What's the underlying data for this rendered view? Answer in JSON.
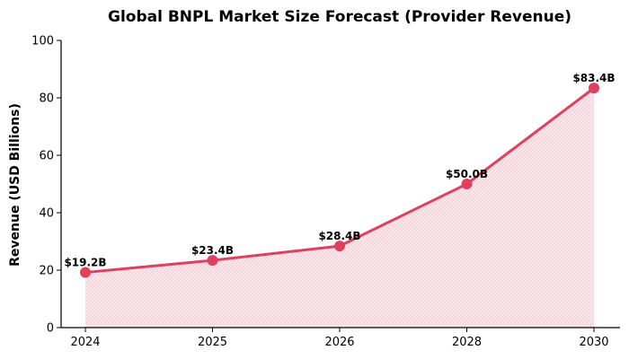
{
  "chart_data": {
    "type": "area",
    "title": "Global BNPL Market Size Forecast (Provider Revenue)",
    "xlabel": "",
    "ylabel": "Revenue (USD Billions)",
    "categories": [
      "2024",
      "2025",
      "2026",
      "2028",
      "2030"
    ],
    "values": [
      19.2,
      23.4,
      28.4,
      50.0,
      83.4
    ],
    "data_labels": [
      "$19.2B",
      "$23.4B",
      "$28.4B",
      "$50.0B",
      "$83.4B"
    ],
    "ylim": [
      0,
      100
    ],
    "yticks": [
      0,
      20,
      40,
      60,
      80,
      100
    ],
    "ytick_labels": [
      "0",
      "20",
      "40",
      "60",
      "80",
      "100"
    ],
    "grid": false,
    "line_color": "#e0405e",
    "fill_color": "#f8d3dc"
  }
}
